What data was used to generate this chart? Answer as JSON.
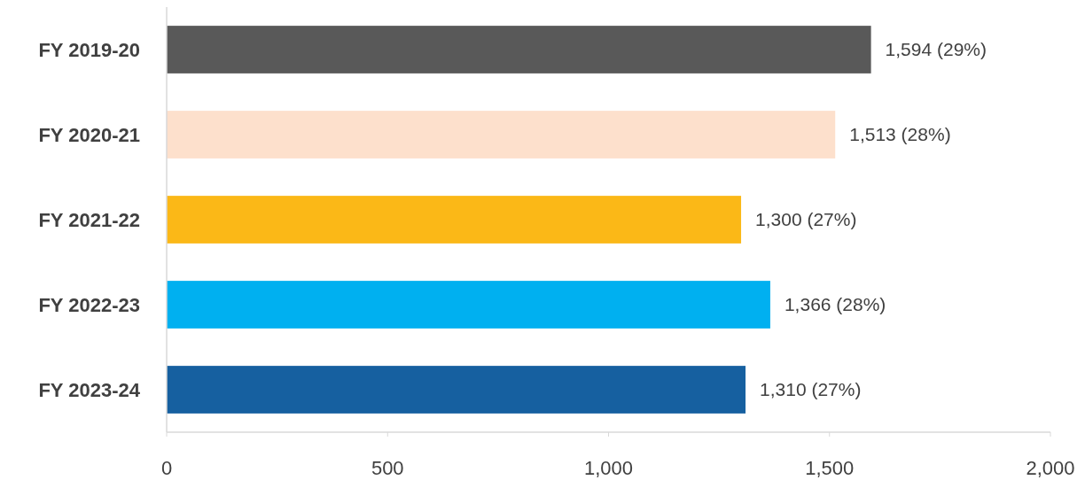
{
  "chart_data": {
    "type": "bar",
    "orientation": "horizontal",
    "categories": [
      "FY 2019-20",
      "FY 2020-21",
      "FY 2021-22",
      "FY 2022-23",
      "FY 2023-24"
    ],
    "values": [
      1594,
      1513,
      1300,
      1366,
      1310
    ],
    "colors": [
      "#595959",
      "#fde0cc",
      "#fbb817",
      "#00b0f0",
      "#1660a0"
    ],
    "value_labels": [
      "1,594 (29%)",
      "1,513 (28%)",
      "1,300 (27%)",
      "1,366 (28%)",
      "1,310 (27%)"
    ],
    "xlim": [
      0,
      2000
    ],
    "xticks": [
      0,
      500,
      {
        "value": 1000,
        "label": "1,000"
      },
      {
        "value": 1500,
        "label": "1,500"
      },
      {
        "value": 2000,
        "label": "2,000"
      }
    ],
    "grid": false
  }
}
